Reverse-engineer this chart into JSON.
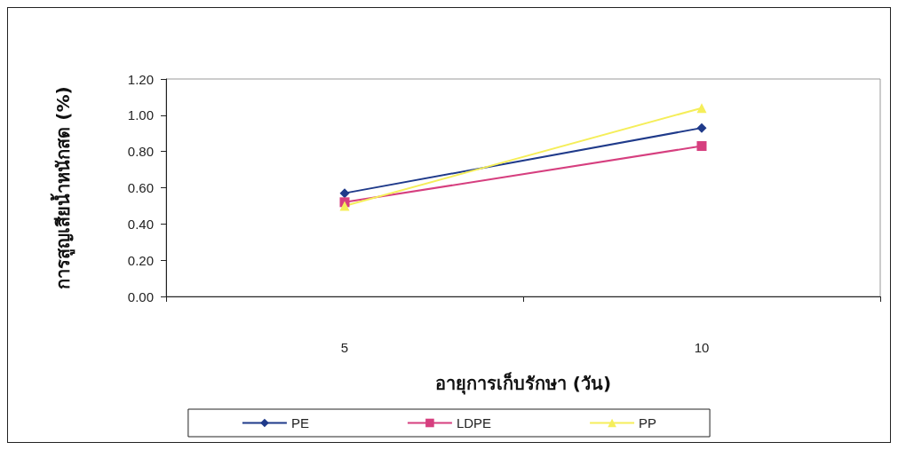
{
  "chart_data": {
    "type": "line",
    "xlabel": "อายุการเก็บรักษา (วัน)",
    "ylabel": "การสูญเสียน้ำหนักสด (%)",
    "categories": [
      "5",
      "10"
    ],
    "series": [
      {
        "name": "PE",
        "color": "#1f3a8a",
        "values": [
          0.57,
          0.93
        ],
        "marker": "diamond"
      },
      {
        "name": "LDPE",
        "color": "#d63f7f",
        "values": [
          0.52,
          0.83
        ],
        "marker": "square"
      },
      {
        "name": "PP",
        "color": "#f5ee5a",
        "values": [
          0.5,
          1.04
        ],
        "marker": "triangle"
      }
    ],
    "ylim": [
      0,
      1.2
    ],
    "yticks": [
      {
        "value": 0,
        "label": "0.00"
      },
      {
        "value": 0.2,
        "label": "0.20"
      },
      {
        "value": 0.4,
        "label": "0.40"
      },
      {
        "value": 0.6,
        "label": "0.60"
      },
      {
        "value": 0.8,
        "label": "0.80"
      },
      {
        "value": 1.0,
        "label": "1.00"
      },
      {
        "value": 1.2,
        "label": "1.20"
      }
    ],
    "grid": false,
    "legend": "bottom"
  }
}
